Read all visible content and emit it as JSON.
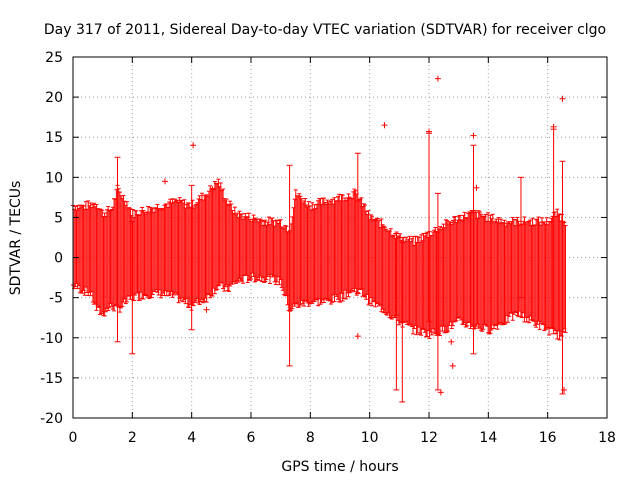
{
  "chart_data": {
    "type": "scatter",
    "title": "Day 317 of 2011, Sidereal Day-to-day VTEC variation (SDTVAR) for receiver clgo",
    "xlabel": "GPS time / hours",
    "ylabel": "SDTVAR / TECUs",
    "xlim": [
      0,
      18
    ],
    "ylim": [
      -20,
      25
    ],
    "x_ticks": [
      "0",
      "2",
      "4",
      "6",
      "8",
      "10",
      "12",
      "14",
      "16",
      "18"
    ],
    "y_ticks": [
      "25",
      "20",
      "15",
      "10",
      "5",
      "0",
      "-5",
      "-10",
      "-15",
      "-20"
    ],
    "grid": true,
    "color": "#ff0000",
    "marker": "plus",
    "series": [
      {
        "name": "SDTVAR",
        "envelope_hours": [
          0.0,
          0.3,
          0.6,
          0.8,
          1.0,
          1.3,
          1.5,
          1.8,
          2.0,
          2.5,
          3.0,
          3.5,
          4.0,
          4.5,
          4.9,
          5.2,
          5.5,
          6.0,
          6.5,
          7.0,
          7.3,
          7.5,
          8.0,
          8.5,
          9.0,
          9.5,
          9.8,
          10.0,
          10.5,
          11.0,
          11.5,
          12.0,
          12.5,
          13.0,
          13.5,
          14.0,
          14.5,
          15.0,
          15.5,
          16.0,
          16.3,
          16.5,
          16.6
        ],
        "envelope_upper": [
          6.5,
          6.3,
          6.6,
          6.8,
          5.5,
          6.0,
          8.5,
          7.0,
          5.5,
          6.0,
          6.5,
          7.0,
          6.5,
          8.0,
          9.5,
          7.0,
          5.5,
          5.0,
          4.5,
          4.5,
          3.5,
          8.0,
          6.5,
          7.0,
          7.5,
          8.0,
          6.5,
          5.0,
          4.0,
          2.5,
          2.0,
          3.0,
          4.0,
          5.0,
          5.5,
          5.0,
          4.5,
          4.5,
          4.5,
          4.5,
          5.5,
          5.0,
          4.5
        ],
        "envelope_lower": [
          -3.5,
          -4.0,
          -4.5,
          -6.5,
          -7.0,
          -6.0,
          -6.5,
          -5.5,
          -5.0,
          -4.5,
          -4.5,
          -5.0,
          -6.0,
          -5.0,
          -3.5,
          -4.0,
          -3.0,
          -2.5,
          -2.5,
          -3.0,
          -6.5,
          -6.0,
          -5.5,
          -5.5,
          -5.0,
          -4.0,
          -4.5,
          -5.5,
          -6.5,
          -8.0,
          -9.0,
          -9.5,
          -9.0,
          -8.0,
          -8.5,
          -9.0,
          -8.0,
          -7.0,
          -8.0,
          -9.0,
          -9.5,
          -10.0,
          -9.0
        ],
        "spikes": [
          {
            "x": 1.5,
            "low": -10.5,
            "high": 12.5
          },
          {
            "x": 2.0,
            "low": -12.0,
            "high": 4.5
          },
          {
            "x": 4.0,
            "low": -9.0,
            "high": 9.0
          },
          {
            "x": 7.3,
            "low": -13.5,
            "high": 11.5
          },
          {
            "x": 9.6,
            "low": -4.5,
            "high": 13.0
          },
          {
            "x": 10.9,
            "low": -16.5,
            "high": 3.0
          },
          {
            "x": 11.1,
            "low": -18.0,
            "high": 2.5
          },
          {
            "x": 12.0,
            "low": -8.0,
            "high": 15.5
          },
          {
            "x": 12.3,
            "low": -16.5,
            "high": 8.0
          },
          {
            "x": 13.5,
            "low": -12.0,
            "high": 14.0
          },
          {
            "x": 15.1,
            "low": -5.0,
            "high": 10.0
          },
          {
            "x": 16.2,
            "low": -9.5,
            "high": 16.0
          },
          {
            "x": 16.5,
            "low": -17.0,
            "high": 12.0
          }
        ],
        "outliers": [
          {
            "x": 3.1,
            "y": 9.5
          },
          {
            "x": 4.05,
            "y": 14.0
          },
          {
            "x": 4.5,
            "y": -6.5
          },
          {
            "x": 4.7,
            "y": 8.5
          },
          {
            "x": 9.6,
            "y": -9.8
          },
          {
            "x": 10.5,
            "y": 16.5
          },
          {
            "x": 12.0,
            "y": 15.7
          },
          {
            "x": 12.3,
            "y": 22.3
          },
          {
            "x": 12.4,
            "y": -16.8
          },
          {
            "x": 12.8,
            "y": -13.5
          },
          {
            "x": 13.5,
            "y": 15.2
          },
          {
            "x": 13.6,
            "y": 8.7
          },
          {
            "x": 12.75,
            "y": -10.5
          },
          {
            "x": 16.2,
            "y": 16.3
          },
          {
            "x": 16.5,
            "y": 19.8
          },
          {
            "x": 16.55,
            "y": -16.5
          }
        ]
      }
    ]
  }
}
